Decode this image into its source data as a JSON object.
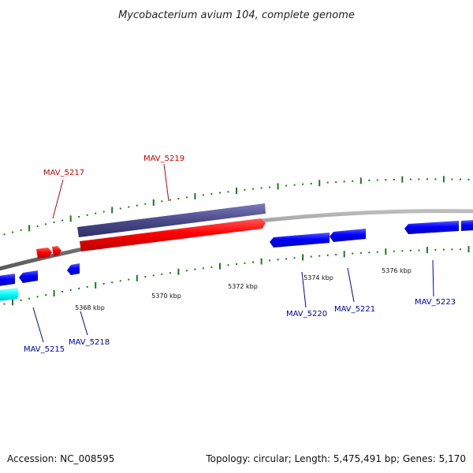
{
  "title": "Mycobacterium avium 104, complete genome",
  "footer": {
    "accession": "Accession: NC_008595",
    "summary": "Topology: circular; Length: 5,475,491 bp; Genes: 5,170"
  },
  "colors": {
    "forward_gene": "#ff0000",
    "reverse_gene": "#0000ff",
    "rna_gene": "#00ffff",
    "other_feature": "#4b4b8c",
    "ticks": "#1a7a1a",
    "backbone": "#888888",
    "label_forward": "#cc0000",
    "label_reverse": "#0000aa"
  },
  "scale_labels": [
    "5368 kbp",
    "5370 kbp",
    "5372 kbp",
    "5374 kbp",
    "5376 kbp"
  ],
  "gene_labels": {
    "forward": [
      "MAV_5217",
      "MAV_5219"
    ],
    "reverse": [
      "MAV_5215",
      "MAV_5218",
      "MAV_5220",
      "MAV_5221",
      "MAV_5223"
    ]
  }
}
